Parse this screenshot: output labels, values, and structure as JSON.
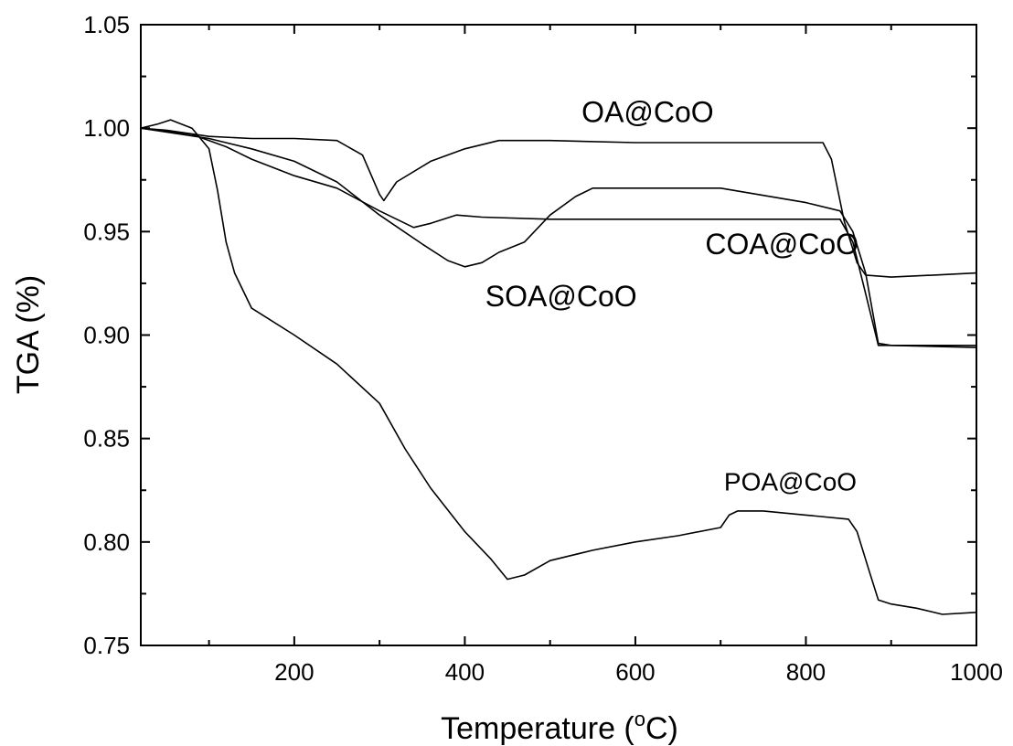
{
  "chart_data": {
    "type": "line",
    "xlabel": "Temperature (",
    "xlabel_sup": "o",
    "xlabel_unit": "C)",
    "ylabel": "TGA (%)",
    "xlim": [
      20,
      1000
    ],
    "ylim": [
      0.75,
      1.05
    ],
    "x_ticks": [
      200,
      400,
      600,
      800,
      1000
    ],
    "x_tick_labels": [
      "200",
      "400",
      "600",
      "800",
      "1000"
    ],
    "y_ticks": [
      0.75,
      0.8,
      0.85,
      0.9,
      0.95,
      1.0,
      1.05
    ],
    "y_tick_labels": [
      "0.75",
      "0.80",
      "0.85",
      "0.90",
      "0.95",
      "1.00",
      "1.05"
    ],
    "grid": false,
    "line_color": "#000000",
    "series": [
      {
        "name": "OA@CoO",
        "points": [
          [
            20,
            1.0
          ],
          [
            50,
            0.999
          ],
          [
            100,
            0.996
          ],
          [
            150,
            0.995
          ],
          [
            200,
            0.995
          ],
          [
            250,
            0.994
          ],
          [
            280,
            0.987
          ],
          [
            300,
            0.968
          ],
          [
            305,
            0.965
          ],
          [
            320,
            0.974
          ],
          [
            360,
            0.984
          ],
          [
            400,
            0.99
          ],
          [
            440,
            0.994
          ],
          [
            500,
            0.994
          ],
          [
            600,
            0.993
          ],
          [
            700,
            0.993
          ],
          [
            800,
            0.993
          ],
          [
            820,
            0.993
          ],
          [
            830,
            0.985
          ],
          [
            845,
            0.955
          ],
          [
            860,
            0.935
          ],
          [
            870,
            0.929
          ],
          [
            900,
            0.928
          ],
          [
            950,
            0.929
          ],
          [
            1000,
            0.93
          ]
        ]
      },
      {
        "name": "SOA@CoO",
        "points": [
          [
            20,
            1.0
          ],
          [
            100,
            0.995
          ],
          [
            150,
            0.99
          ],
          [
            200,
            0.984
          ],
          [
            250,
            0.974
          ],
          [
            300,
            0.958
          ],
          [
            350,
            0.944
          ],
          [
            380,
            0.936
          ],
          [
            400,
            0.933
          ],
          [
            420,
            0.935
          ],
          [
            440,
            0.94
          ],
          [
            470,
            0.945
          ],
          [
            500,
            0.958
          ],
          [
            530,
            0.967
          ],
          [
            550,
            0.971
          ],
          [
            600,
            0.971
          ],
          [
            700,
            0.971
          ],
          [
            800,
            0.964
          ],
          [
            840,
            0.96
          ],
          [
            855,
            0.95
          ],
          [
            870,
            0.93
          ],
          [
            885,
            0.896
          ],
          [
            900,
            0.895
          ],
          [
            1000,
            0.894
          ]
        ]
      },
      {
        "name": "COA@CoO",
        "points": [
          [
            20,
            1.0
          ],
          [
            80,
            0.997
          ],
          [
            120,
            0.991
          ],
          [
            150,
            0.985
          ],
          [
            200,
            0.977
          ],
          [
            250,
            0.971
          ],
          [
            300,
            0.96
          ],
          [
            340,
            0.952
          ],
          [
            360,
            0.954
          ],
          [
            390,
            0.958
          ],
          [
            420,
            0.957
          ],
          [
            500,
            0.956
          ],
          [
            600,
            0.956
          ],
          [
            700,
            0.956
          ],
          [
            800,
            0.956
          ],
          [
            840,
            0.956
          ],
          [
            855,
            0.945
          ],
          [
            870,
            0.92
          ],
          [
            885,
            0.895
          ],
          [
            900,
            0.895
          ],
          [
            1000,
            0.895
          ]
        ]
      },
      {
        "name": "POA@CoO",
        "points": [
          [
            20,
            1.0
          ],
          [
            40,
            1.002
          ],
          [
            55,
            1.004
          ],
          [
            80,
            1.0
          ],
          [
            100,
            0.99
          ],
          [
            110,
            0.97
          ],
          [
            120,
            0.945
          ],
          [
            130,
            0.93
          ],
          [
            150,
            0.913
          ],
          [
            200,
            0.9
          ],
          [
            250,
            0.886
          ],
          [
            300,
            0.867
          ],
          [
            330,
            0.845
          ],
          [
            360,
            0.826
          ],
          [
            400,
            0.805
          ],
          [
            430,
            0.792
          ],
          [
            450,
            0.782
          ],
          [
            470,
            0.784
          ],
          [
            500,
            0.791
          ],
          [
            550,
            0.796
          ],
          [
            600,
            0.8
          ],
          [
            650,
            0.803
          ],
          [
            700,
            0.807
          ],
          [
            710,
            0.813
          ],
          [
            720,
            0.815
          ],
          [
            750,
            0.815
          ],
          [
            800,
            0.813
          ],
          [
            850,
            0.811
          ],
          [
            860,
            0.805
          ],
          [
            875,
            0.785
          ],
          [
            885,
            0.772
          ],
          [
            900,
            0.77
          ],
          [
            930,
            0.768
          ],
          [
            960,
            0.765
          ],
          [
            1000,
            0.766
          ]
        ]
      }
    ],
    "annotations": [
      {
        "series": "OA@CoO",
        "text": "OA@CoO",
        "x": 537,
        "y": 1.003
      },
      {
        "series": "COA@CoO",
        "text": "COA@CoO",
        "x": 682,
        "y": 0.939
      },
      {
        "series": "SOA@CoO",
        "text": "SOA@CoO",
        "x": 424,
        "y": 0.914
      },
      {
        "series": "POA@CoO",
        "text": "POA@CoO",
        "x": 704,
        "y": 0.825
      }
    ]
  }
}
